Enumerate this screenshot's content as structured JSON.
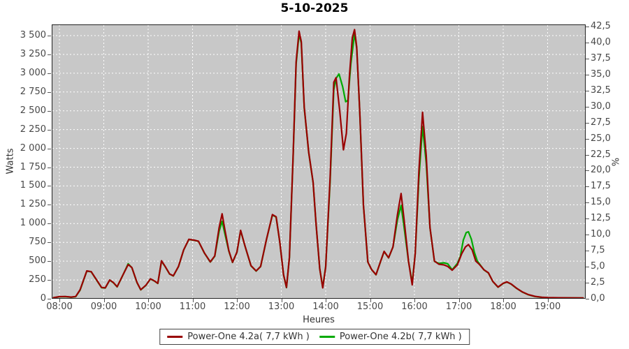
{
  "title": "5-10-2025",
  "axes": {
    "left": {
      "label": "Watts",
      "tick_values": [
        0,
        250,
        500,
        750,
        1000,
        1250,
        1500,
        1750,
        2000,
        2250,
        2500,
        2750,
        3000,
        3250,
        3500
      ],
      "tick_labels": [
        "0",
        "250",
        "500",
        "750",
        "1 000",
        "1 250",
        "1 500",
        "1 750",
        "2 000",
        "2 250",
        "2 500",
        "2 750",
        "3 000",
        "3 250",
        "3 500"
      ]
    },
    "right": {
      "label": "%",
      "tick_values": [
        0,
        2.5,
        5,
        7.5,
        10,
        12.5,
        15,
        17.5,
        20,
        22.5,
        25,
        27.5,
        30,
        32.5,
        35,
        37.5,
        40,
        42.5
      ],
      "tick_labels": [
        "0,0",
        "2,5",
        "5,0",
        "7,5",
        "10,0",
        "12,5",
        "15,0",
        "17,5",
        "20,0",
        "22,5",
        "25,0",
        "27,5",
        "30,0",
        "32,5",
        "35,0",
        "37,5",
        "40,0",
        "42,5"
      ]
    },
    "bottom": {
      "label": "Heures",
      "tick_labels": [
        "08:00",
        "09:00",
        "10:00",
        "11:00",
        "12:00",
        "13:00",
        "14:00",
        "15:00",
        "16:00",
        "17:00",
        "18:00",
        "19:00"
      ]
    }
  },
  "colors": {
    "plot_background": "#c8c8c8",
    "gridline": "#ffffff",
    "series_a": "#990000",
    "series_b": "#00aa00",
    "tick_text": "#484848"
  },
  "chart_data": {
    "type": "line",
    "title": "5-10-2025",
    "xlabel": "Heures",
    "ylabel_left": "Watts",
    "ylabel_right": "%",
    "x_range": [
      "07:50",
      "19:50"
    ],
    "y_left_range": [
      0,
      3670
    ],
    "y_right_range": [
      0,
      42.5
    ],
    "grid": true,
    "legend_position": "bottom",
    "series": [
      {
        "name": "Power-One 4.2a( 7,7 kWh )",
        "color": "#990000",
        "points": [
          [
            "07:52",
            15
          ],
          [
            "08:00",
            28
          ],
          [
            "08:08",
            30
          ],
          [
            "08:16",
            22
          ],
          [
            "08:22",
            30
          ],
          [
            "08:28",
            120
          ],
          [
            "08:37",
            370
          ],
          [
            "08:43",
            360
          ],
          [
            "08:50",
            255
          ],
          [
            "08:57",
            150
          ],
          [
            "09:02",
            145
          ],
          [
            "09:08",
            250
          ],
          [
            "09:13",
            215
          ],
          [
            "09:18",
            160
          ],
          [
            "09:25",
            300
          ],
          [
            "09:33",
            455
          ],
          [
            "09:38",
            415
          ],
          [
            "09:45",
            215
          ],
          [
            "09:50",
            120
          ],
          [
            "09:57",
            180
          ],
          [
            "10:03",
            265
          ],
          [
            "10:08",
            240
          ],
          [
            "10:13",
            205
          ],
          [
            "10:18",
            505
          ],
          [
            "10:23",
            430
          ],
          [
            "10:29",
            330
          ],
          [
            "10:34",
            305
          ],
          [
            "10:41",
            430
          ],
          [
            "10:48",
            650
          ],
          [
            "10:55",
            790
          ],
          [
            "11:02",
            780
          ],
          [
            "11:08",
            765
          ],
          [
            "11:16",
            610
          ],
          [
            "11:24",
            490
          ],
          [
            "11:30",
            570
          ],
          [
            "11:36",
            950
          ],
          [
            "11:40",
            1130
          ],
          [
            "11:44",
            900
          ],
          [
            "11:49",
            640
          ],
          [
            "11:54",
            485
          ],
          [
            "12:00",
            620
          ],
          [
            "12:05",
            910
          ],
          [
            "12:11",
            700
          ],
          [
            "12:19",
            440
          ],
          [
            "12:26",
            370
          ],
          [
            "12:32",
            430
          ],
          [
            "12:40",
            790
          ],
          [
            "12:48",
            1120
          ],
          [
            "12:53",
            1090
          ],
          [
            "12:58",
            750
          ],
          [
            "13:03",
            320
          ],
          [
            "13:07",
            150
          ],
          [
            "13:11",
            550
          ],
          [
            "13:16",
            1900
          ],
          [
            "13:20",
            3150
          ],
          [
            "13:24",
            3560
          ],
          [
            "13:27",
            3420
          ],
          [
            "13:31",
            2550
          ],
          [
            "13:37",
            1950
          ],
          [
            "13:43",
            1550
          ],
          [
            "13:47",
            1000
          ],
          [
            "13:52",
            400
          ],
          [
            "13:56",
            145
          ],
          [
            "14:00",
            420
          ],
          [
            "14:06",
            1600
          ],
          [
            "14:11",
            2880
          ],
          [
            "14:14",
            2940
          ],
          [
            "14:19",
            2500
          ],
          [
            "14:24",
            1980
          ],
          [
            "14:28",
            2200
          ],
          [
            "14:32",
            2950
          ],
          [
            "14:36",
            3470
          ],
          [
            "14:39",
            3580
          ],
          [
            "14:42",
            3350
          ],
          [
            "14:46",
            2500
          ],
          [
            "14:51",
            1250
          ],
          [
            "14:57",
            490
          ],
          [
            "15:02",
            390
          ],
          [
            "15:08",
            320
          ],
          [
            "15:14",
            490
          ],
          [
            "15:19",
            630
          ],
          [
            "15:25",
            545
          ],
          [
            "15:31",
            690
          ],
          [
            "15:37",
            1120
          ],
          [
            "15:42",
            1400
          ],
          [
            "15:46",
            1050
          ],
          [
            "15:52",
            500
          ],
          [
            "15:57",
            185
          ],
          [
            "16:01",
            600
          ],
          [
            "16:06",
            1700
          ],
          [
            "16:11",
            2480
          ],
          [
            "16:16",
            1900
          ],
          [
            "16:21",
            950
          ],
          [
            "16:27",
            500
          ],
          [
            "16:33",
            460
          ],
          [
            "16:40",
            450
          ],
          [
            "16:45",
            430
          ],
          [
            "16:51",
            380
          ],
          [
            "16:58",
            450
          ],
          [
            "17:04",
            600
          ],
          [
            "17:09",
            690
          ],
          [
            "17:13",
            720
          ],
          [
            "17:18",
            650
          ],
          [
            "17:23",
            500
          ],
          [
            "17:28",
            455
          ],
          [
            "17:34",
            385
          ],
          [
            "17:40",
            345
          ],
          [
            "17:46",
            230
          ],
          [
            "17:53",
            155
          ],
          [
            "18:00",
            205
          ],
          [
            "18:05",
            225
          ],
          [
            "18:11",
            195
          ],
          [
            "18:18",
            140
          ],
          [
            "18:26",
            90
          ],
          [
            "18:34",
            55
          ],
          [
            "18:43",
            32
          ],
          [
            "18:52",
            20
          ],
          [
            "19:00",
            15
          ],
          [
            "19:15",
            13
          ],
          [
            "19:30",
            12
          ],
          [
            "19:48",
            10
          ]
        ]
      },
      {
        "name": "Power-One 4.2b( 7,7 kWh )",
        "color": "#00aa00",
        "points": [
          [
            "07:52",
            14
          ],
          [
            "08:00",
            26
          ],
          [
            "08:08",
            28
          ],
          [
            "08:16",
            20
          ],
          [
            "08:22",
            28
          ],
          [
            "08:28",
            115
          ],
          [
            "08:37",
            368
          ],
          [
            "08:43",
            358
          ],
          [
            "08:50",
            252
          ],
          [
            "08:57",
            148
          ],
          [
            "09:02",
            143
          ],
          [
            "09:08",
            248
          ],
          [
            "09:13",
            213
          ],
          [
            "09:18",
            158
          ],
          [
            "09:25",
            298
          ],
          [
            "09:33",
            465
          ],
          [
            "09:38",
            413
          ],
          [
            "09:45",
            213
          ],
          [
            "09:50",
            118
          ],
          [
            "09:57",
            178
          ],
          [
            "10:03",
            263
          ],
          [
            "10:08",
            238
          ],
          [
            "10:13",
            203
          ],
          [
            "10:18",
            500
          ],
          [
            "10:23",
            428
          ],
          [
            "10:29",
            328
          ],
          [
            "10:34",
            303
          ],
          [
            "10:41",
            428
          ],
          [
            "10:48",
            648
          ],
          [
            "10:55",
            788
          ],
          [
            "11:02",
            778
          ],
          [
            "11:08",
            763
          ],
          [
            "11:16",
            608
          ],
          [
            "11:24",
            488
          ],
          [
            "11:30",
            565
          ],
          [
            "11:36",
            900
          ],
          [
            "11:40",
            1030
          ],
          [
            "11:44",
            850
          ],
          [
            "11:49",
            635
          ],
          [
            "11:54",
            483
          ],
          [
            "12:00",
            618
          ],
          [
            "12:05",
            905
          ],
          [
            "12:11",
            698
          ],
          [
            "12:19",
            438
          ],
          [
            "12:26",
            368
          ],
          [
            "12:32",
            428
          ],
          [
            "12:40",
            788
          ],
          [
            "12:48",
            1115
          ],
          [
            "12:53",
            1085
          ],
          [
            "12:58",
            748
          ],
          [
            "13:03",
            318
          ],
          [
            "13:07",
            148
          ],
          [
            "13:11",
            545
          ],
          [
            "13:16",
            1880
          ],
          [
            "13:20",
            3120
          ],
          [
            "13:24",
            3520
          ],
          [
            "13:27",
            3400
          ],
          [
            "13:31",
            2540
          ],
          [
            "13:37",
            1945
          ],
          [
            "13:43",
            1545
          ],
          [
            "13:47",
            995
          ],
          [
            "13:52",
            398
          ],
          [
            "13:56",
            150
          ],
          [
            "14:00",
            430
          ],
          [
            "14:06",
            1550
          ],
          [
            "14:11",
            2780
          ],
          [
            "14:14",
            2930
          ],
          [
            "14:18",
            2990
          ],
          [
            "14:23",
            2820
          ],
          [
            "14:27",
            2620
          ],
          [
            "14:30",
            2640
          ],
          [
            "14:34",
            3120
          ],
          [
            "14:39",
            3530
          ],
          [
            "14:42",
            3330
          ],
          [
            "14:46",
            2495
          ],
          [
            "14:51",
            1245
          ],
          [
            "14:57",
            488
          ],
          [
            "15:02",
            388
          ],
          [
            "15:08",
            318
          ],
          [
            "15:14",
            488
          ],
          [
            "15:19",
            628
          ],
          [
            "15:25",
            543
          ],
          [
            "15:31",
            688
          ],
          [
            "15:37",
            1050
          ],
          [
            "15:42",
            1240
          ],
          [
            "15:46",
            950
          ],
          [
            "15:52",
            498
          ],
          [
            "15:57",
            210
          ],
          [
            "16:01",
            598
          ],
          [
            "16:06",
            1600
          ],
          [
            "16:11",
            2290
          ],
          [
            "16:16",
            1800
          ],
          [
            "16:21",
            948
          ],
          [
            "16:27",
            498
          ],
          [
            "16:33",
            470
          ],
          [
            "16:40",
            478
          ],
          [
            "16:45",
            465
          ],
          [
            "16:51",
            385
          ],
          [
            "16:58",
            470
          ],
          [
            "17:02",
            560
          ],
          [
            "17:06",
            780
          ],
          [
            "17:10",
            880
          ],
          [
            "17:13",
            890
          ],
          [
            "17:17",
            790
          ],
          [
            "17:21",
            620
          ],
          [
            "17:25",
            500
          ],
          [
            "17:28",
            462
          ],
          [
            "17:34",
            383
          ],
          [
            "17:40",
            343
          ],
          [
            "17:46",
            228
          ],
          [
            "17:53",
            153
          ],
          [
            "18:00",
            203
          ],
          [
            "18:05",
            223
          ],
          [
            "18:11",
            193
          ],
          [
            "18:18",
            138
          ],
          [
            "18:26",
            88
          ],
          [
            "18:34",
            53
          ],
          [
            "18:43",
            30
          ],
          [
            "18:52",
            19
          ],
          [
            "19:00",
            14
          ],
          [
            "19:15",
            12
          ],
          [
            "19:30",
            11
          ],
          [
            "19:48",
            9
          ]
        ]
      }
    ]
  }
}
